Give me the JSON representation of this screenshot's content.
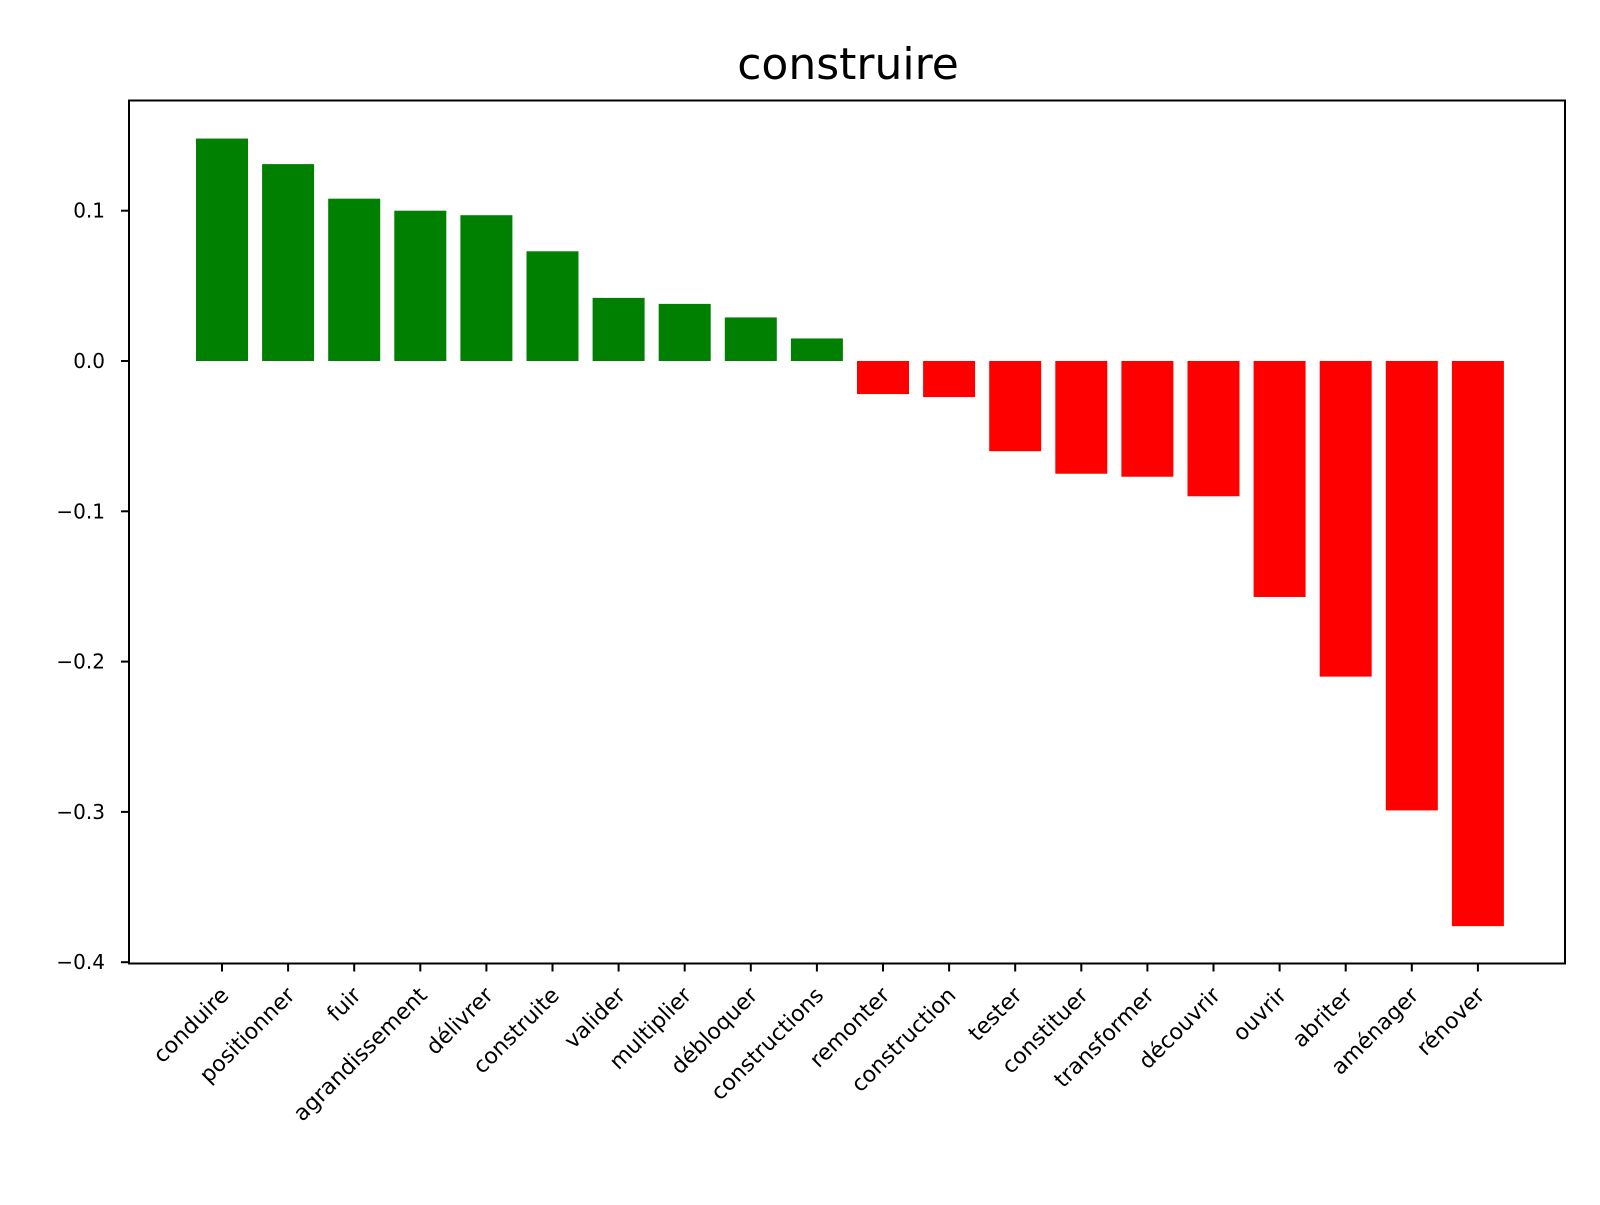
{
  "chart_data": {
    "type": "bar",
    "title": "construire",
    "xlabel": "",
    "ylabel": "",
    "categories": [
      "conduire",
      "positionner",
      "fuir",
      "agrandissement",
      "délivrer",
      "construite",
      "valider",
      "multiplier",
      "débloquer",
      "constructions",
      "remonter",
      "construction",
      "tester",
      "constituer",
      "transformer",
      "découvrir",
      "ouvrir",
      "abriter",
      "aménager",
      "rénover"
    ],
    "values": [
      0.148,
      0.131,
      0.108,
      0.1,
      0.097,
      0.073,
      0.042,
      0.038,
      0.029,
      0.015,
      -0.022,
      -0.024,
      -0.06,
      -0.075,
      -0.077,
      -0.09,
      -0.157,
      -0.21,
      -0.299,
      -0.376
    ],
    "ylim": [
      -0.4,
      0.175
    ],
    "yticks": [
      0.1,
      0.0,
      -0.1,
      -0.2,
      -0.3,
      -0.4
    ],
    "ytick_labels": [
      "0.1",
      "0.0",
      "−0.1",
      "−0.2",
      "−0.3",
      "−0.4"
    ],
    "grid": false,
    "colors": {
      "positive": "#008000",
      "negative": "#ff0000",
      "axis": "#000000"
    }
  }
}
